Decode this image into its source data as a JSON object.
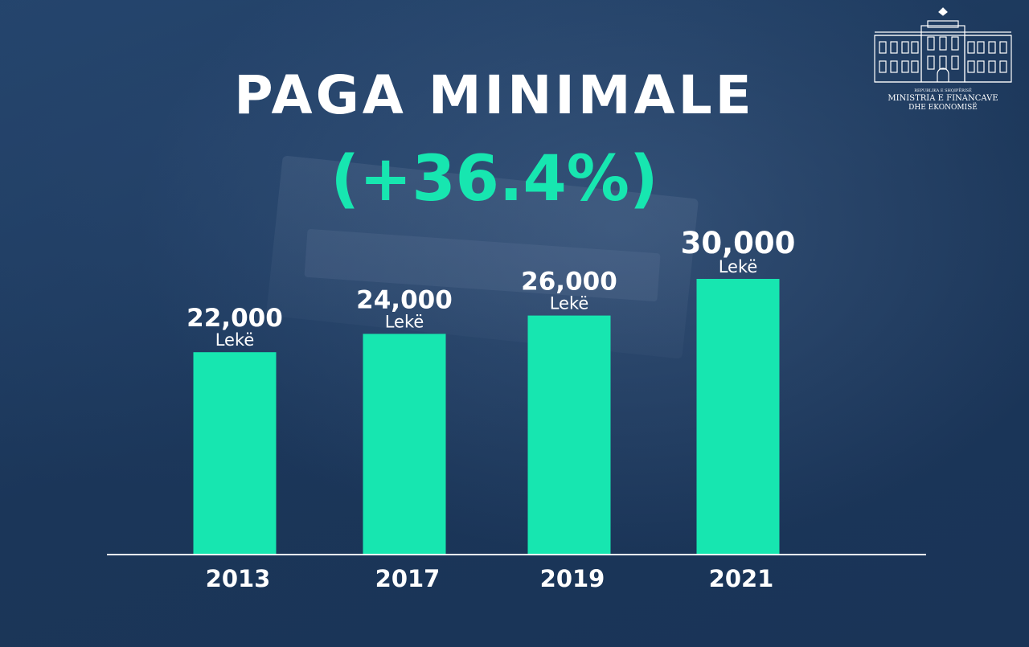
{
  "header": {
    "title": "PAGA MINIMALE",
    "subtitle": "(+36.4%)"
  },
  "logo": {
    "line1": "REPUBLIKA E SHQIPËRISË",
    "line2": "MINISTRIA E FINANCAVE",
    "line3": "DHE EKONOMISË"
  },
  "colors": {
    "bar": "#17e6b0",
    "background": "#1d3a5f",
    "text": "#ffffff",
    "accent": "#17e6b0"
  },
  "chart_data": {
    "type": "bar",
    "title": "PAGA MINIMALE",
    "subtitle": "(+36.4%)",
    "categories": [
      "2013",
      "2017",
      "2019",
      "2021"
    ],
    "values": [
      22000,
      24000,
      26000,
      30000
    ],
    "value_labels": [
      "22,000",
      "24,000",
      "26,000",
      "30,000"
    ],
    "unit_label": "Lekë",
    "xlabel": "",
    "ylabel": "",
    "grid": false,
    "legend": "none"
  }
}
